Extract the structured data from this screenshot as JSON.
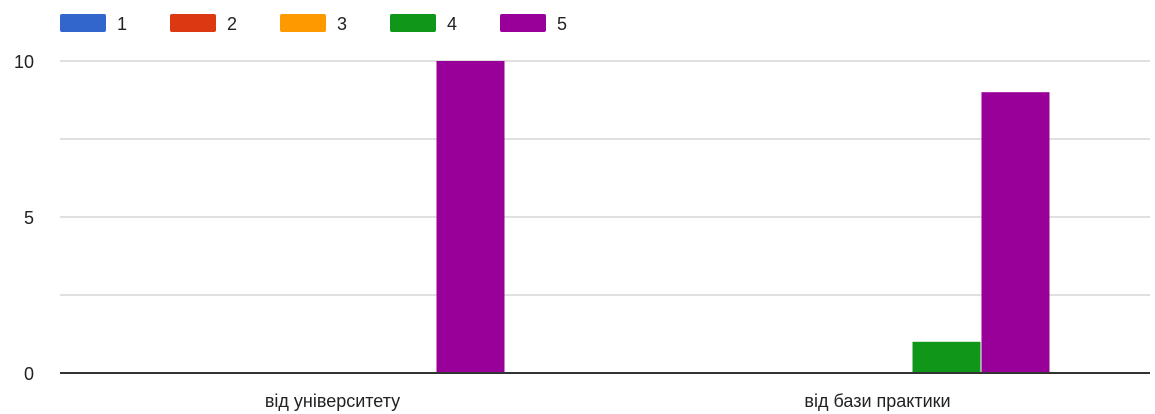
{
  "chart_data": {
    "type": "bar",
    "title": "",
    "xlabel": "",
    "ylabel": "",
    "categories": [
      "від університету",
      "від бази практики"
    ],
    "series": [
      {
        "name": "1",
        "color": "#3366cc",
        "values": [
          0,
          0
        ]
      },
      {
        "name": "2",
        "color": "#dc3912",
        "values": [
          0,
          0
        ]
      },
      {
        "name": "3",
        "color": "#ff9900",
        "values": [
          0,
          0
        ]
      },
      {
        "name": "4",
        "color": "#109618",
        "values": [
          0,
          1
        ]
      },
      {
        "name": "5",
        "color": "#990099",
        "values": [
          10,
          9
        ]
      }
    ],
    "ylim": [
      0,
      10
    ],
    "yticks": [
      0,
      5,
      10
    ],
    "grid": true,
    "legend": "top-left"
  }
}
